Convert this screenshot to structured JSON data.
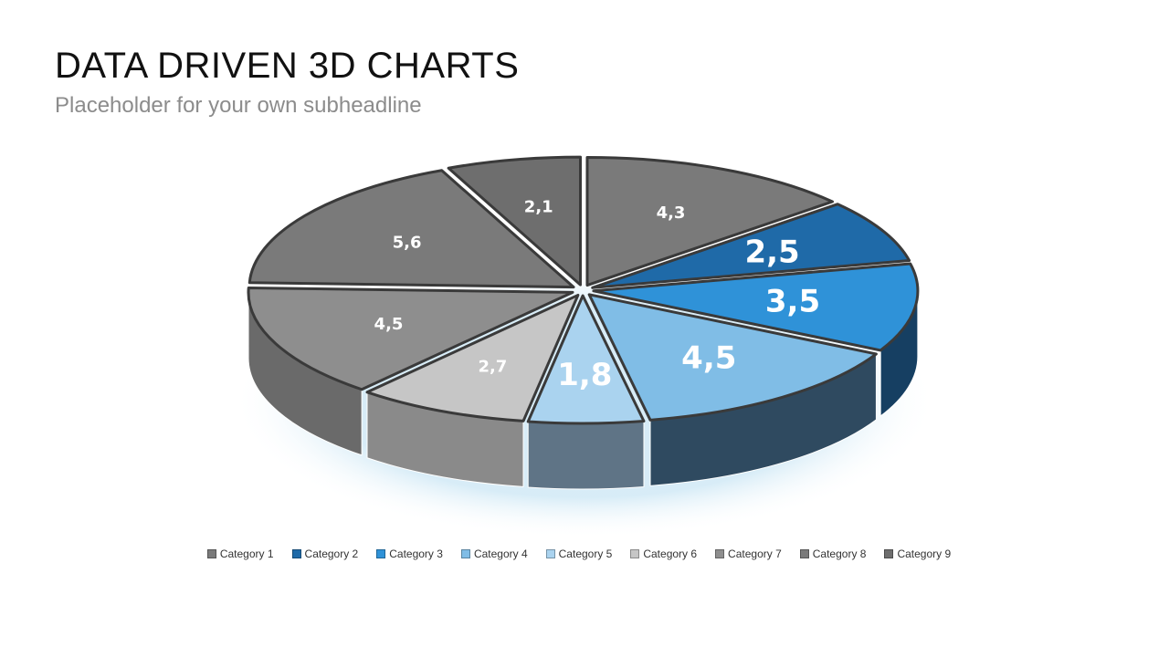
{
  "slide": {
    "title": "DATA DRIVEN 3D CHARTS",
    "subtitle": "Placeholder for your own subheadline"
  },
  "chart_data": {
    "type": "pie",
    "three_d": true,
    "legend_position": "bottom",
    "categories": [
      "Category 1",
      "Category 2",
      "Category 3",
      "Category 4",
      "Category 5",
      "Category 6",
      "Category 7",
      "Category 8",
      "Category 9"
    ],
    "values": [
      4.3,
      2.5,
      3.5,
      4.5,
      1.8,
      2.7,
      4.5,
      5.6,
      2.1
    ],
    "data_labels": [
      "4,3",
      "2,5",
      "3,5",
      "4,5",
      "1,8",
      "2,7",
      "4,5",
      "5,6",
      "2,1"
    ],
    "highlighted": [
      false,
      true,
      true,
      true,
      true,
      false,
      false,
      false,
      false
    ],
    "colors": [
      "#7a7a7a",
      "#1f6aa8",
      "#2f92d8",
      "#80bde6",
      "#aad3ef",
      "#c6c6c6",
      "#8e8e8e",
      "#7a7a7a",
      "#6e6e6e"
    ],
    "side_colors": [
      "#5a5a5a",
      "#0e3a5e",
      "#163f62",
      "#2f4a60",
      "#5f7486",
      "#8a8a8a",
      "#6a6a6a",
      "#555555",
      "#505050"
    ],
    "start_angle_deg": -90
  }
}
